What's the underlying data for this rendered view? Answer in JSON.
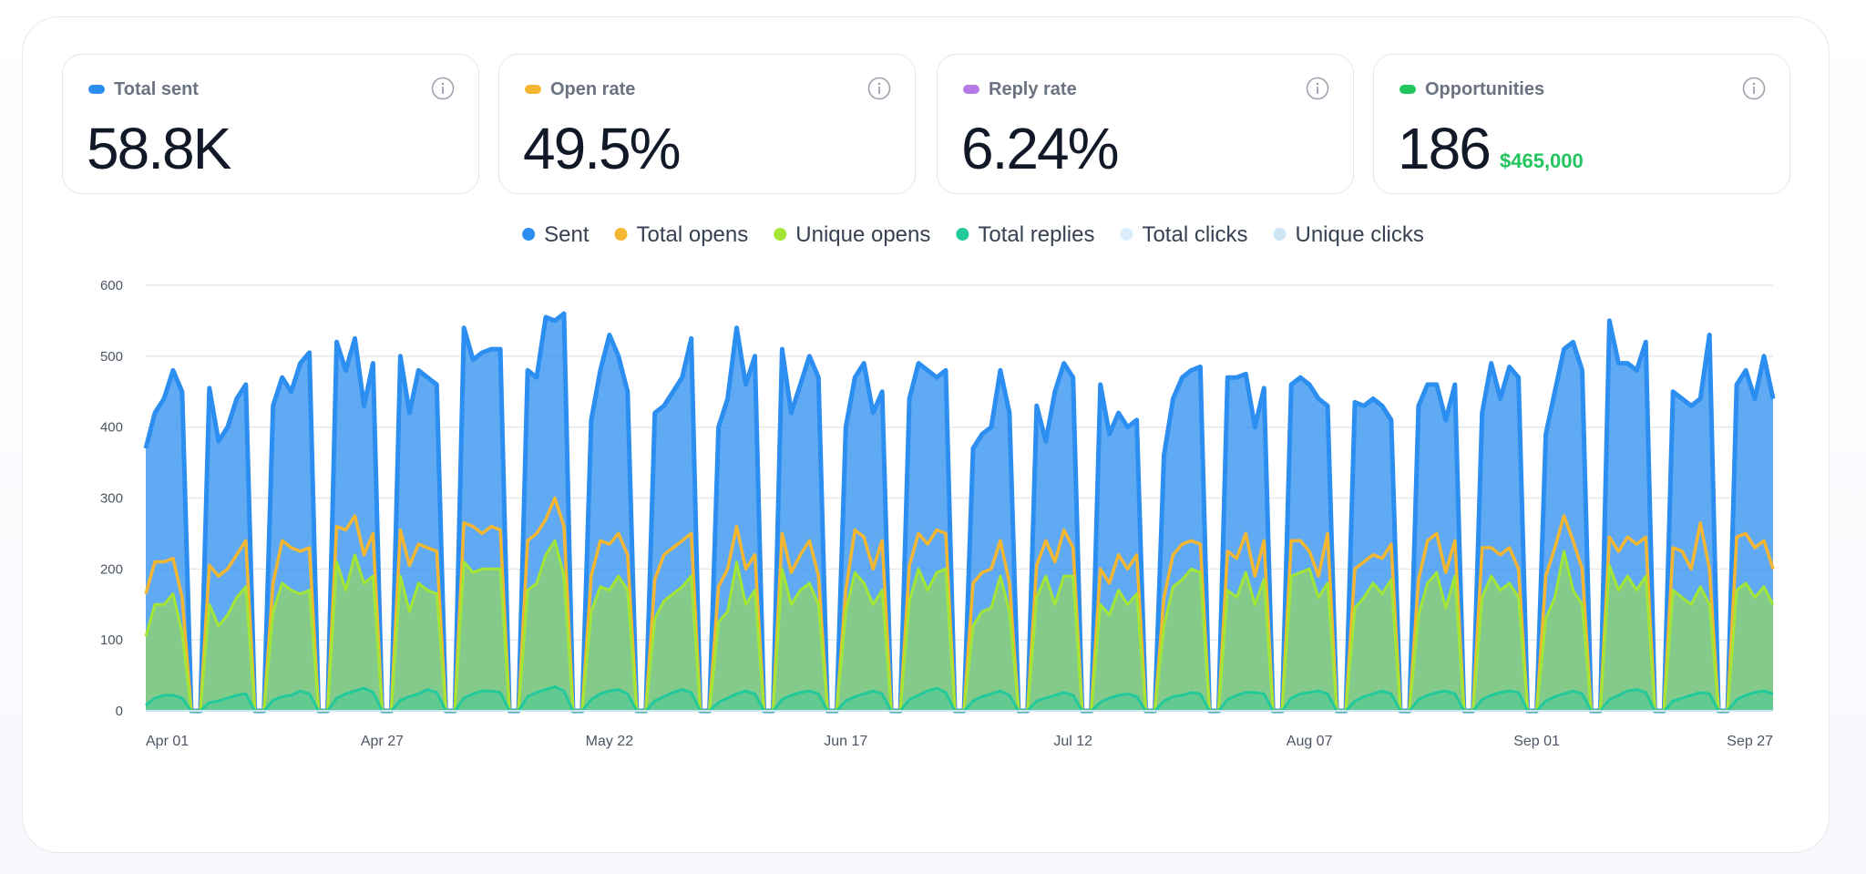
{
  "cards": [
    {
      "label": "Total sent",
      "value": "58.8K"
    },
    {
      "label": "Open rate",
      "value": "49.5%"
    },
    {
      "label": "Reply rate",
      "value": "6.24%"
    },
    {
      "label": "Opportunities",
      "value": "186",
      "note": "$465,000"
    }
  ],
  "chart_data": {
    "type": "area",
    "grid": true,
    "legend": "top",
    "categories": [
      "Apr 01",
      null,
      null,
      null,
      null,
      null,
      null,
      null,
      null,
      null,
      null,
      null,
      null,
      null,
      null,
      null,
      null,
      null,
      null,
      null,
      null,
      null,
      null,
      null,
      null,
      null,
      "Apr 27",
      null,
      null,
      null,
      null,
      null,
      null,
      null,
      null,
      null,
      null,
      null,
      null,
      null,
      null,
      null,
      null,
      null,
      null,
      null,
      null,
      null,
      null,
      null,
      null,
      "May 22",
      null,
      null,
      null,
      null,
      null,
      null,
      null,
      null,
      null,
      null,
      null,
      null,
      null,
      null,
      null,
      null,
      null,
      null,
      null,
      null,
      null,
      null,
      null,
      null,
      null,
      "Jun 17",
      null,
      null,
      null,
      null,
      null,
      null,
      null,
      null,
      null,
      null,
      null,
      null,
      null,
      null,
      null,
      null,
      null,
      null,
      null,
      null,
      null,
      null,
      null,
      null,
      "Jul 12",
      null,
      null,
      null,
      null,
      null,
      null,
      null,
      null,
      null,
      null,
      null,
      null,
      null,
      null,
      null,
      null,
      null,
      null,
      null,
      null,
      null,
      null,
      null,
      null,
      null,
      "Aug 07",
      null,
      null,
      null,
      null,
      null,
      null,
      null,
      null,
      null,
      null,
      null,
      null,
      null,
      null,
      null,
      null,
      null,
      null,
      null,
      null,
      null,
      null,
      null,
      null,
      "Sep 01",
      null,
      null,
      null,
      null,
      null,
      null,
      null,
      null,
      null,
      null,
      null,
      null,
      null,
      null,
      null,
      null,
      null,
      null,
      null,
      null,
      null,
      null,
      null,
      null,
      null,
      "Sep 27"
    ],
    "ylim": [
      0,
      600
    ],
    "yticks": [
      0,
      100,
      200,
      300,
      400,
      500,
      600
    ],
    "series": [
      {
        "name": "Sent",
        "color": "#2b8ef0",
        "values": [
          370,
          420,
          440,
          480,
          450,
          0,
          0,
          455,
          380,
          400,
          440,
          460,
          0,
          0,
          430,
          470,
          450,
          490,
          505,
          0,
          0,
          520,
          480,
          525,
          430,
          490,
          0,
          0,
          500,
          420,
          480,
          470,
          460,
          0,
          0,
          540,
          495,
          505,
          510,
          510,
          0,
          0,
          480,
          470,
          555,
          550,
          560,
          0,
          0,
          410,
          480,
          530,
          500,
          450,
          0,
          0,
          420,
          430,
          450,
          470,
          525,
          0,
          0,
          400,
          440,
          540,
          460,
          500,
          0,
          0,
          510,
          420,
          460,
          500,
          470,
          0,
          0,
          400,
          470,
          490,
          420,
          450,
          0,
          0,
          440,
          490,
          480,
          470,
          480,
          0,
          0,
          370,
          390,
          400,
          480,
          420,
          0,
          0,
          430,
          380,
          450,
          490,
          470,
          0,
          0,
          460,
          390,
          420,
          400,
          410,
          0,
          0,
          360,
          440,
          470,
          480,
          485,
          0,
          0,
          470,
          470,
          475,
          400,
          455,
          0,
          0,
          460,
          470,
          460,
          440,
          430,
          0,
          0,
          435,
          430,
          440,
          430,
          410,
          0,
          0,
          430,
          460,
          460,
          410,
          460,
          0,
          0,
          420,
          490,
          440,
          485,
          470,
          0,
          0,
          390,
          450,
          510,
          520,
          480,
          0,
          0,
          550,
          490,
          490,
          480,
          520,
          0,
          0,
          450,
          440,
          430,
          440,
          530,
          0,
          0,
          460,
          480,
          440,
          500,
          440
        ]
      },
      {
        "name": "Total opens",
        "color": "#f5b731",
        "values": [
          165,
          210,
          210,
          215,
          160,
          0,
          0,
          205,
          190,
          200,
          220,
          240,
          0,
          0,
          180,
          240,
          230,
          225,
          230,
          0,
          0,
          260,
          255,
          275,
          220,
          250,
          0,
          0,
          255,
          205,
          235,
          230,
          225,
          0,
          0,
          265,
          260,
          250,
          260,
          255,
          0,
          0,
          240,
          250,
          270,
          300,
          260,
          0,
          0,
          190,
          240,
          235,
          250,
          220,
          0,
          0,
          185,
          220,
          230,
          240,
          250,
          0,
          0,
          175,
          200,
          260,
          200,
          220,
          0,
          0,
          250,
          195,
          220,
          240,
          190,
          0,
          0,
          170,
          255,
          245,
          200,
          240,
          0,
          0,
          205,
          250,
          235,
          255,
          250,
          0,
          0,
          180,
          195,
          200,
          240,
          180,
          0,
          0,
          205,
          240,
          210,
          255,
          230,
          0,
          0,
          200,
          180,
          220,
          200,
          220,
          0,
          0,
          160,
          220,
          235,
          240,
          235,
          0,
          0,
          225,
          215,
          250,
          190,
          240,
          0,
          0,
          240,
          240,
          225,
          190,
          250,
          0,
          0,
          200,
          210,
          220,
          215,
          235,
          0,
          0,
          185,
          240,
          250,
          195,
          240,
          0,
          0,
          230,
          230,
          220,
          230,
          200,
          0,
          0,
          190,
          230,
          275,
          240,
          200,
          0,
          0,
          245,
          225,
          245,
          235,
          245,
          0,
          0,
          230,
          225,
          200,
          265,
          200,
          0,
          0,
          245,
          250,
          230,
          240,
          200
        ]
      },
      {
        "name": "Unique opens",
        "color": "#a3e635",
        "values": [
          105,
          150,
          150,
          165,
          110,
          0,
          0,
          150,
          120,
          135,
          160,
          175,
          0,
          0,
          140,
          180,
          170,
          165,
          170,
          0,
          0,
          210,
          170,
          220,
          180,
          190,
          0,
          0,
          190,
          140,
          180,
          170,
          165,
          0,
          0,
          210,
          195,
          200,
          200,
          200,
          0,
          0,
          170,
          180,
          220,
          240,
          190,
          0,
          0,
          140,
          175,
          170,
          190,
          170,
          0,
          0,
          130,
          155,
          165,
          175,
          190,
          0,
          0,
          125,
          140,
          210,
          150,
          170,
          0,
          0,
          200,
          150,
          170,
          180,
          150,
          0,
          0,
          140,
          195,
          180,
          150,
          170,
          0,
          0,
          155,
          200,
          170,
          195,
          200,
          0,
          0,
          120,
          140,
          145,
          190,
          140,
          0,
          0,
          160,
          190,
          150,
          190,
          190,
          0,
          0,
          150,
          135,
          170,
          150,
          165,
          0,
          0,
          120,
          175,
          185,
          200,
          195,
          0,
          0,
          170,
          160,
          195,
          150,
          185,
          0,
          0,
          190,
          195,
          200,
          160,
          180,
          0,
          0,
          145,
          160,
          180,
          165,
          185,
          0,
          0,
          135,
          180,
          195,
          145,
          190,
          0,
          0,
          160,
          190,
          170,
          180,
          160,
          0,
          0,
          130,
          160,
          225,
          170,
          150,
          0,
          0,
          205,
          170,
          190,
          170,
          190,
          0,
          0,
          170,
          160,
          150,
          175,
          150,
          0,
          0,
          170,
          180,
          160,
          175,
          150
        ]
      },
      {
        "name": "Total replies",
        "color": "#22c99a",
        "values": [
          8,
          18,
          22,
          22,
          18,
          0,
          0,
          12,
          14,
          18,
          22,
          24,
          0,
          0,
          15,
          20,
          22,
          28,
          24,
          0,
          0,
          18,
          24,
          28,
          32,
          26,
          0,
          0,
          15,
          20,
          24,
          30,
          26,
          0,
          0,
          18,
          24,
          28,
          28,
          26,
          0,
          0,
          20,
          26,
          30,
          34,
          28,
          0,
          0,
          16,
          24,
          28,
          30,
          24,
          0,
          0,
          14,
          20,
          26,
          30,
          26,
          0,
          0,
          12,
          18,
          24,
          28,
          24,
          0,
          0,
          16,
          22,
          26,
          28,
          24,
          0,
          0,
          14,
          20,
          24,
          28,
          24,
          0,
          0,
          16,
          22,
          28,
          32,
          26,
          0,
          0,
          14,
          20,
          24,
          28,
          22,
          0,
          0,
          14,
          18,
          22,
          26,
          22,
          0,
          0,
          12,
          18,
          22,
          24,
          20,
          0,
          0,
          14,
          20,
          22,
          26,
          24,
          0,
          0,
          16,
          22,
          26,
          26,
          24,
          0,
          0,
          18,
          24,
          26,
          28,
          24,
          0,
          0,
          14,
          20,
          24,
          28,
          24,
          0,
          0,
          16,
          22,
          26,
          28,
          24,
          0,
          0,
          16,
          22,
          26,
          28,
          26,
          0,
          0,
          14,
          20,
          24,
          28,
          24,
          0,
          0,
          16,
          22,
          28,
          30,
          26,
          0,
          0,
          14,
          18,
          22,
          26,
          24,
          0,
          0,
          16,
          22,
          26,
          28,
          24
        ]
      },
      {
        "name": "Total clicks",
        "color": "#dbeefb",
        "values": [
          0,
          0,
          0,
          0,
          0,
          0,
          0,
          0,
          0,
          0,
          0,
          0,
          0,
          0,
          0,
          0,
          0,
          0,
          0,
          0,
          0,
          0,
          0,
          0,
          0,
          0,
          0,
          0,
          0,
          0,
          0,
          0,
          0,
          0,
          0,
          0,
          0,
          0,
          0,
          0,
          0,
          0,
          0,
          0,
          0,
          0,
          0,
          0,
          0,
          0,
          0,
          0,
          0,
          0,
          0,
          0,
          0,
          0,
          0,
          0,
          0,
          0,
          0,
          0,
          0,
          0,
          0,
          0,
          0,
          0,
          0,
          0,
          0,
          0,
          0,
          0,
          0,
          0,
          0,
          0,
          0,
          0,
          0,
          0,
          0,
          0,
          0,
          0,
          0,
          0,
          0,
          0,
          0,
          0,
          0,
          0,
          0,
          0,
          0,
          0,
          0,
          0,
          0,
          0,
          0,
          0,
          0,
          0,
          0,
          0,
          0,
          0,
          0,
          0,
          0,
          0,
          0,
          0,
          0,
          0,
          0,
          0,
          0,
          0,
          0,
          0,
          0,
          0,
          0,
          0,
          0,
          0,
          0,
          0,
          0,
          0,
          0,
          0,
          0,
          0,
          0,
          0,
          0,
          0,
          0,
          0,
          0,
          0,
          0,
          0,
          0,
          0,
          0,
          0,
          0,
          0,
          0,
          0,
          0,
          0,
          0,
          0,
          0,
          0,
          0,
          0,
          0,
          0,
          0,
          0,
          0,
          0,
          0,
          0,
          0,
          0,
          0,
          0,
          0,
          0
        ]
      },
      {
        "name": "Unique clicks",
        "color": "#cfe6f7",
        "values": [
          0,
          0,
          0,
          0,
          0,
          0,
          0,
          0,
          0,
          0,
          0,
          0,
          0,
          0,
          0,
          0,
          0,
          0,
          0,
          0,
          0,
          0,
          0,
          0,
          0,
          0,
          0,
          0,
          0,
          0,
          0,
          0,
          0,
          0,
          0,
          0,
          0,
          0,
          0,
          0,
          0,
          0,
          0,
          0,
          0,
          0,
          0,
          0,
          0,
          0,
          0,
          0,
          0,
          0,
          0,
          0,
          0,
          0,
          0,
          0,
          0,
          0,
          0,
          0,
          0,
          0,
          0,
          0,
          0,
          0,
          0,
          0,
          0,
          0,
          0,
          0,
          0,
          0,
          0,
          0,
          0,
          0,
          0,
          0,
          0,
          0,
          0,
          0,
          0,
          0,
          0,
          0,
          0,
          0,
          0,
          0,
          0,
          0,
          0,
          0,
          0,
          0,
          0,
          0,
          0,
          0,
          0,
          0,
          0,
          0,
          0,
          0,
          0,
          0,
          0,
          0,
          0,
          0,
          0,
          0,
          0,
          0,
          0,
          0,
          0,
          0,
          0,
          0,
          0,
          0,
          0,
          0,
          0,
          0,
          0,
          0,
          0,
          0,
          0,
          0,
          0,
          0,
          0,
          0,
          0,
          0,
          0,
          0,
          0,
          0,
          0,
          0,
          0,
          0,
          0,
          0,
          0,
          0,
          0,
          0,
          0,
          0,
          0,
          0,
          0,
          0,
          0,
          0,
          0,
          0,
          0,
          0,
          0,
          0,
          0,
          0,
          0,
          0,
          0,
          0
        ]
      }
    ]
  }
}
